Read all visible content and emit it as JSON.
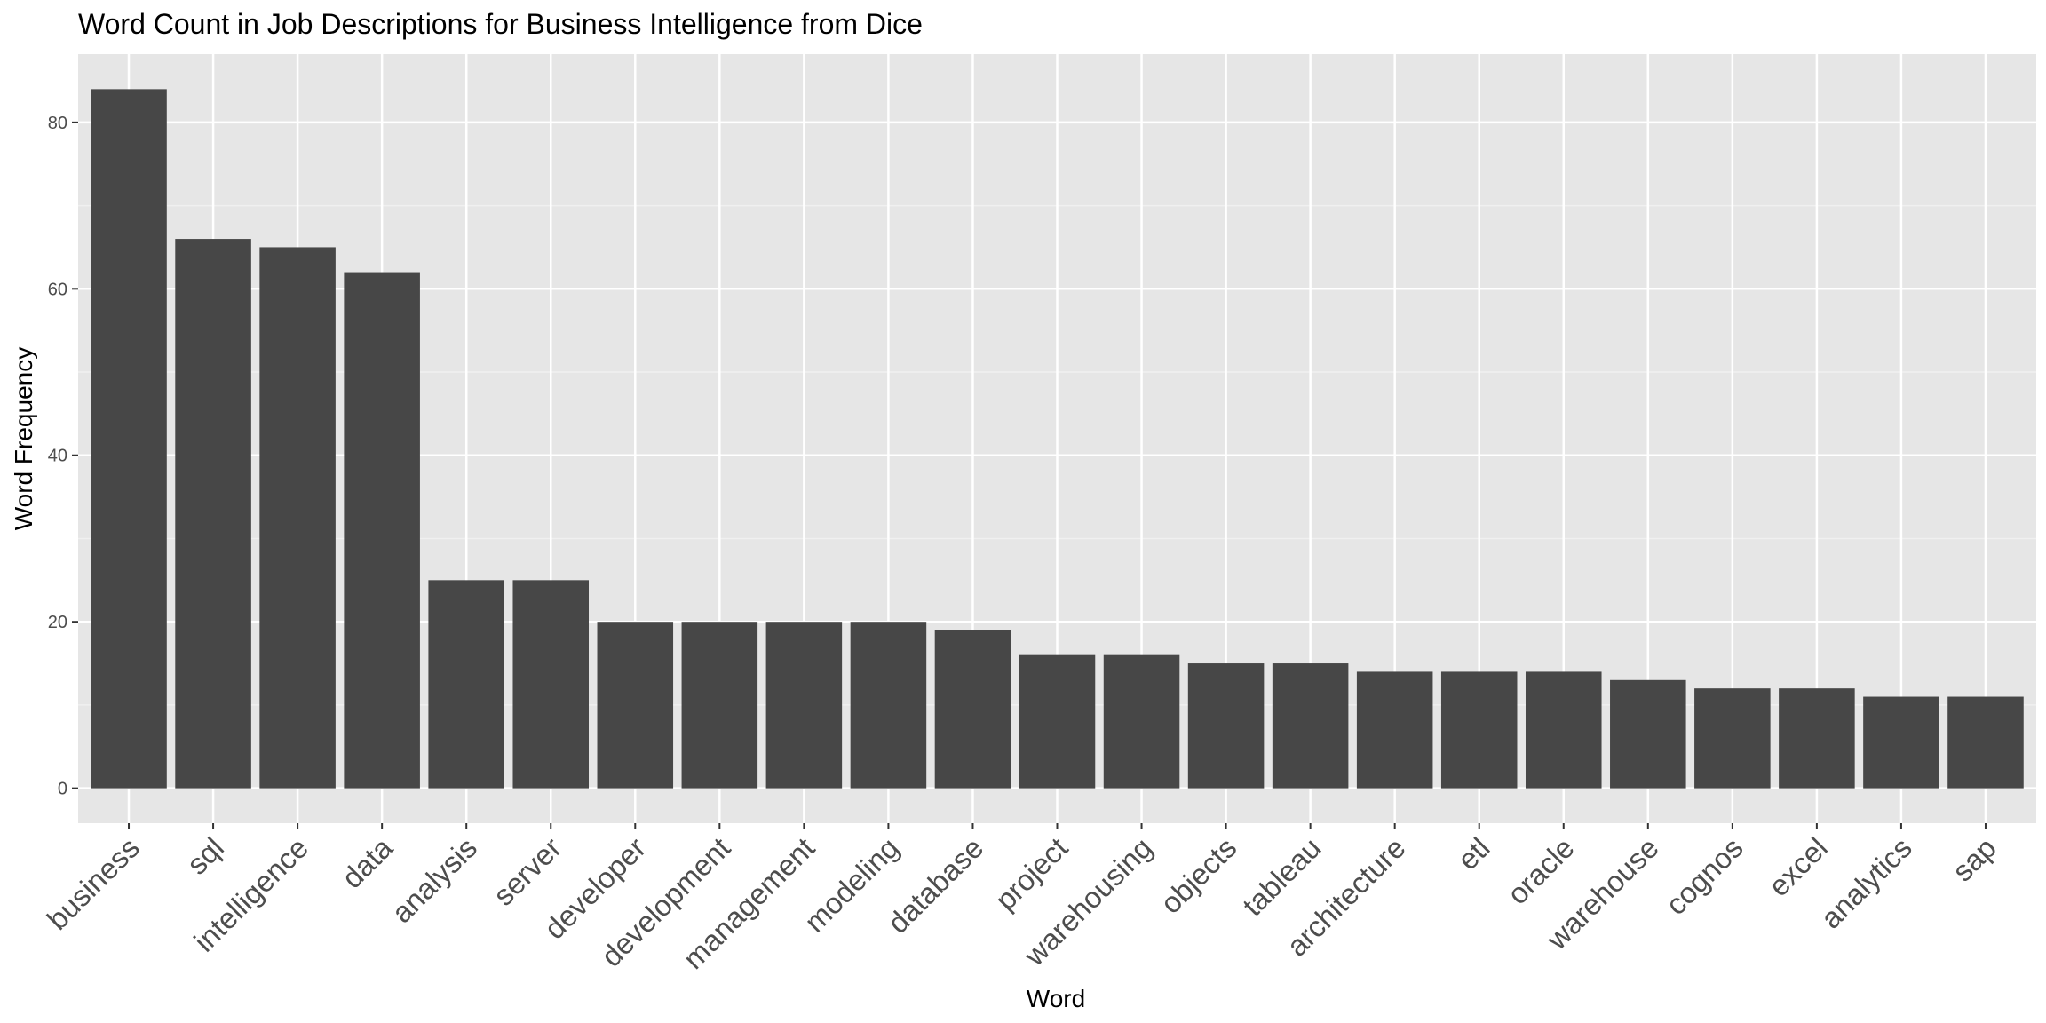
{
  "chart_data": {
    "type": "bar",
    "title": "Word Count in Job Descriptions for Business Intelligence from Dice",
    "xlabel": "Word",
    "ylabel": "Word Frequency",
    "categories": [
      "business",
      "sql",
      "intelligence",
      "data",
      "analysis",
      "server",
      "developer",
      "development",
      "management",
      "modeling",
      "database",
      "project",
      "warehousing",
      "objects",
      "tableau",
      "architecture",
      "etl",
      "oracle",
      "warehouse",
      "cognos",
      "excel",
      "analytics",
      "sap"
    ],
    "values": [
      84,
      66,
      65,
      62,
      25,
      25,
      20,
      20,
      20,
      20,
      19,
      16,
      16,
      15,
      15,
      14,
      14,
      14,
      13,
      12,
      12,
      11,
      11
    ],
    "ylim": [
      -4.2,
      88.2
    ],
    "yticks": [
      0,
      20,
      40,
      60,
      80
    ],
    "grid": true,
    "legend": "none",
    "colors": {
      "bar": "#474747",
      "panel": "#e6e6e6",
      "grid_major": "#ffffff",
      "grid_minor": "#f0f0f0"
    }
  }
}
